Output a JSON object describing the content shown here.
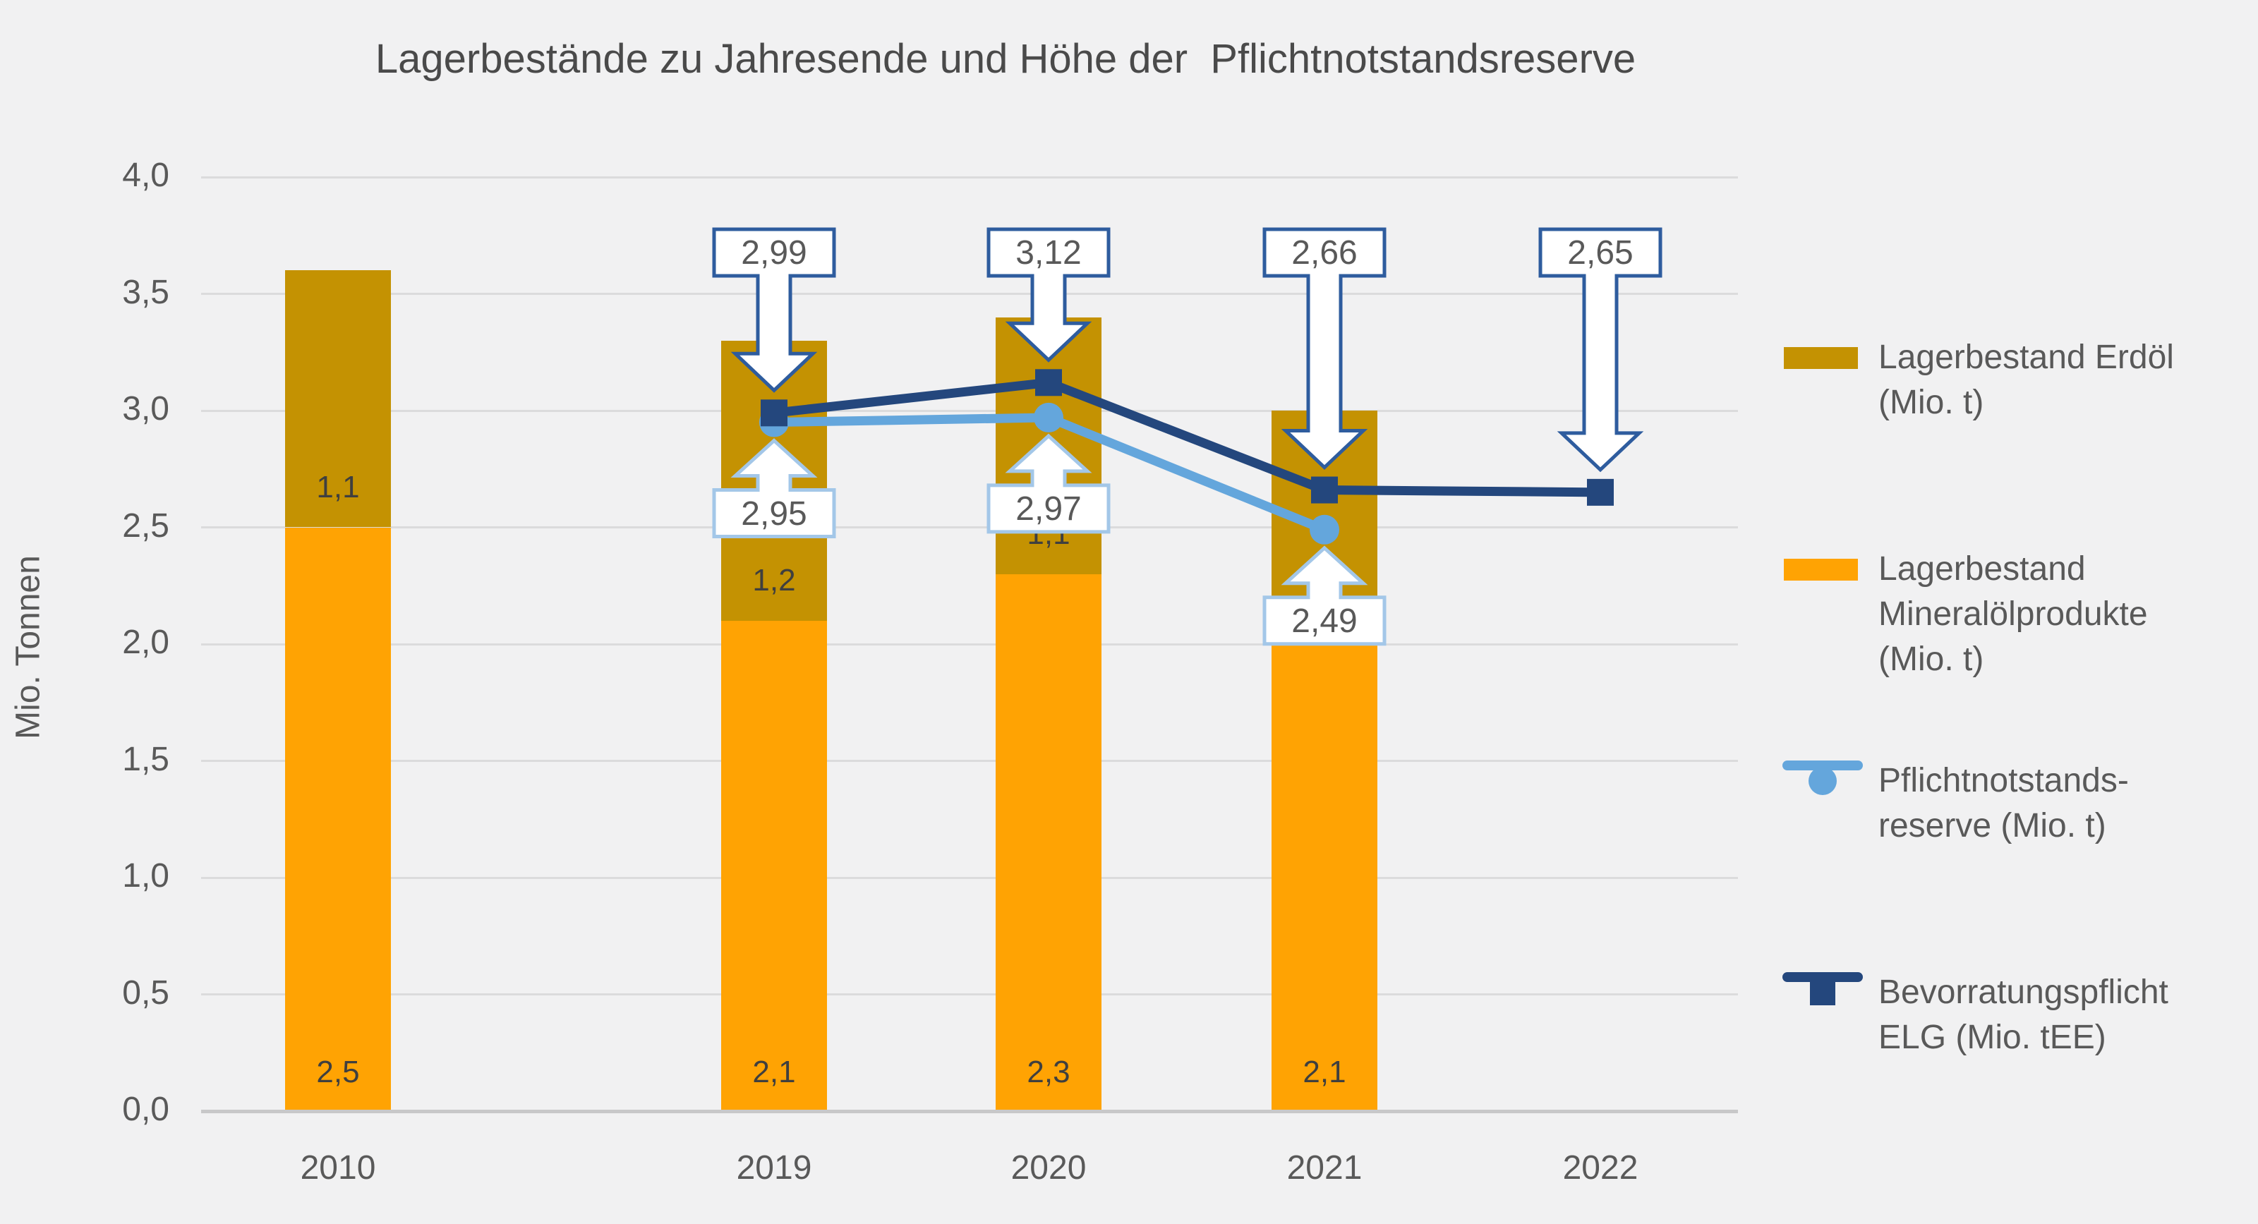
{
  "title": "Lagerbestände zu Jahresende und Höhe der  Pflichtnotstandsreserve",
  "y_axis": {
    "label": "Mio. Tonnen",
    "max": 4,
    "ticks": [
      "0,0",
      "0,5",
      "1,0",
      "1,5",
      "2,0",
      "2,5",
      "3,0",
      "3,5",
      "4,0"
    ]
  },
  "x_axis": {
    "categories": [
      "2010",
      "2019",
      "2020",
      "2021",
      "2022"
    ]
  },
  "chart_data": {
    "type": "bar",
    "subtype": "stacked-bar-with-lines",
    "title": "Lagerbestände zu Jahresende und Höhe der  Pflichtnotstandsreserve",
    "ylabel": "Mio. Tonnen",
    "ylim": [
      0,
      4
    ],
    "ytick_step": 0.5,
    "grid": true,
    "legend_position": "right",
    "categories": [
      "2010",
      "2019",
      "2020",
      "2021",
      "2022"
    ],
    "bar_totals": [
      3.6,
      3.3,
      3.4,
      3.0,
      null
    ],
    "bar_series": [
      {
        "name": "Lagerbestand Erdöl (Mio. t)",
        "color": "#c49202",
        "values": [
          1.1,
          1.2,
          1.1,
          null,
          null
        ],
        "labels": [
          "1,1",
          "1,2",
          "1,1",
          null,
          null
        ]
      },
      {
        "name": "Lagerbestand Mineralölprodukte (Mio. t)",
        "color": "#ffa303",
        "values": [
          2.5,
          2.1,
          2.3,
          2.1,
          null
        ],
        "labels": [
          "2,5",
          "2,1",
          "2,3",
          "2,1",
          null
        ]
      }
    ],
    "line_series": [
      {
        "name": "Pflichtnotstandsreserve (Mio. t)",
        "color": "#64a6dc",
        "marker": "circle",
        "values": [
          null,
          2.95,
          2.97,
          2.49,
          null
        ],
        "callout_labels": [
          null,
          "2,95",
          "2,97",
          "2,49",
          null
        ],
        "callout_side": "below",
        "callout_border": "#a3c7e8"
      },
      {
        "name": "Bevorratungspflicht ELG (Mio. tEE)",
        "color": "#24477d",
        "marker": "square",
        "values": [
          null,
          2.99,
          3.12,
          2.66,
          2.65
        ],
        "callout_labels": [
          null,
          "2,99",
          "3,12",
          "2,66",
          "2,65"
        ],
        "callout_side": "above",
        "callout_border": "#2e5c9e"
      }
    ]
  },
  "legend": {
    "items": [
      {
        "swatch": "bar",
        "color": "#c49202",
        "lines": [
          "Lagerbestand Erdöl",
          "(Mio. t)"
        ]
      },
      {
        "swatch": "bar",
        "color": "#ffa303",
        "lines": [
          "Lagerbestand",
          "Mineralölprodukte",
          "(Mio. t)"
        ]
      },
      {
        "swatch": "line-circle",
        "color": "#64a6dc",
        "lines": [
          "Pflichtnotstands-",
          "reserve (Mio. t)"
        ]
      },
      {
        "swatch": "line-square",
        "color": "#24477d",
        "lines": [
          "Bevorratungspflicht",
          "ELG (Mio. tEE)"
        ]
      }
    ]
  },
  "colors": {
    "background": "#f1f1f2",
    "gridline": "#dbdbdc",
    "axis_line": "#c8c8c9",
    "erdoel": "#c49202",
    "mineraloelprodukte": "#ffa303",
    "pflichtnotstandsreserve": "#64a6dc",
    "bevorratungspflicht_elg": "#24477d",
    "text": "#595959"
  }
}
